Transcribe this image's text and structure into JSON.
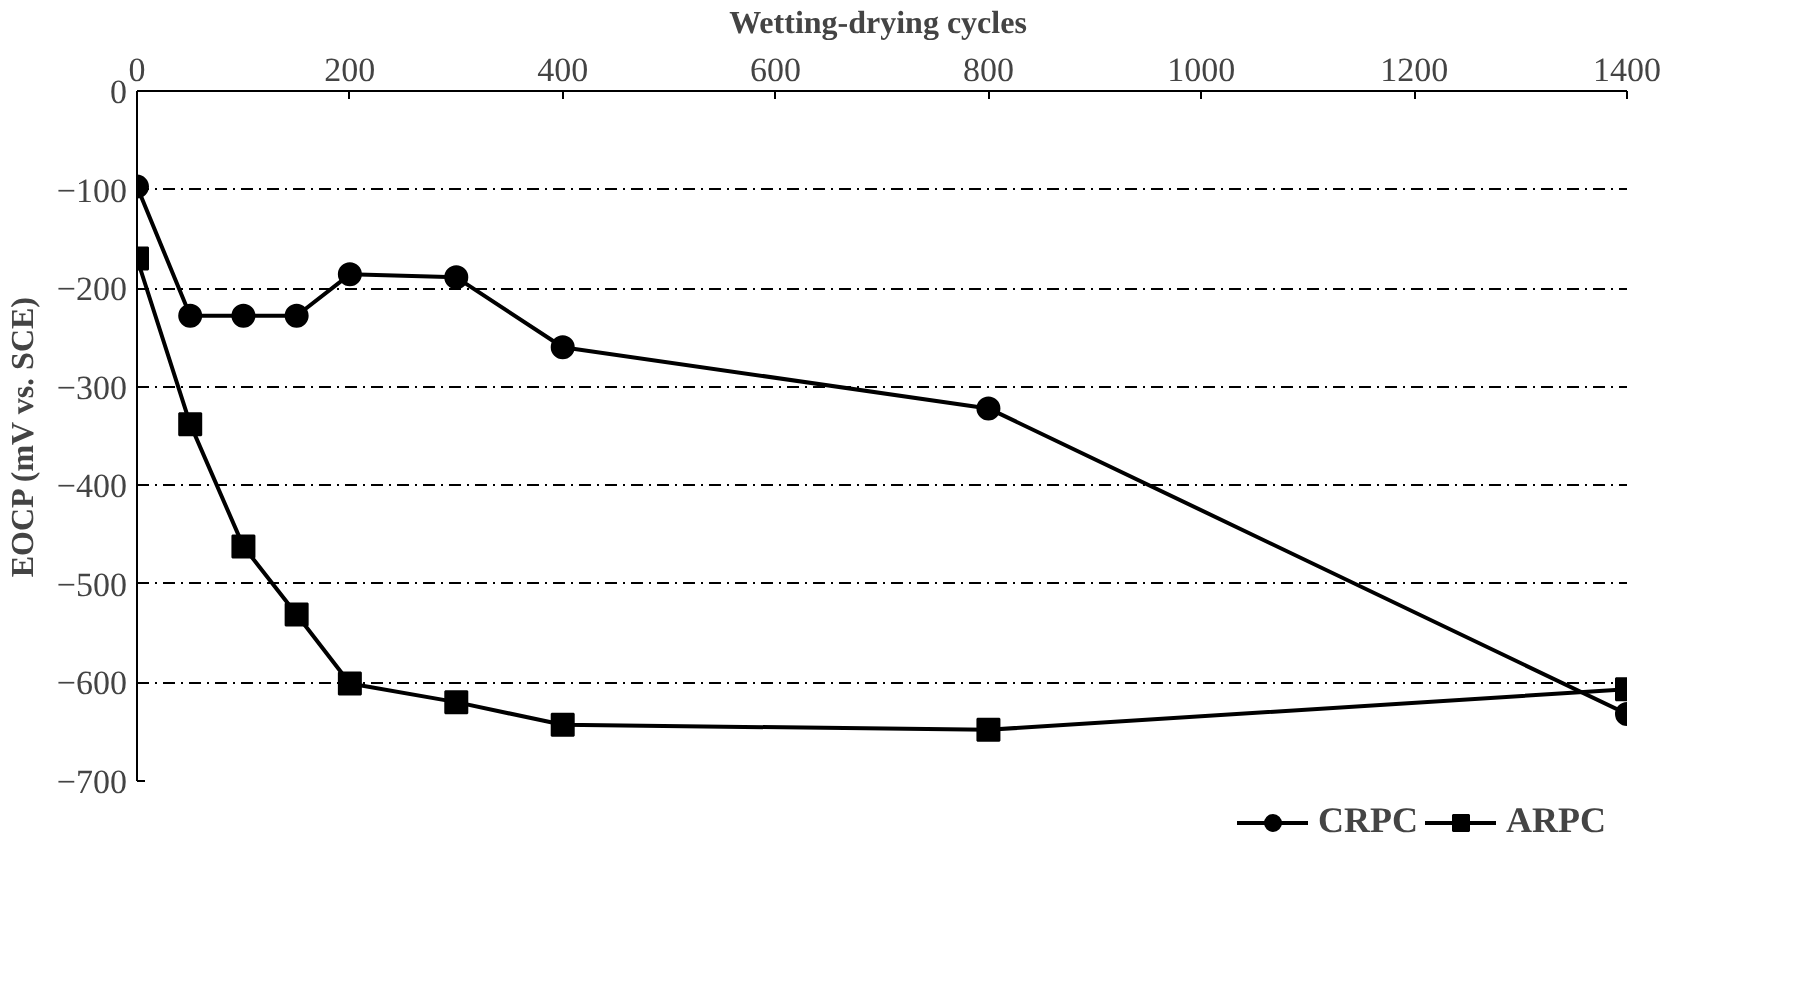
{
  "chart_data": {
    "type": "line",
    "xlabel": "Wetting-drying  cycles",
    "ylabel": "EOCP (mV vs. SCE)",
    "xlim": [
      0,
      1400
    ],
    "xticks": [
      0,
      200,
      400,
      600,
      800,
      1000,
      1200,
      1400
    ],
    "ylim": [
      -700,
      0
    ],
    "yticks": [
      -700,
      -600,
      -500,
      -400,
      -300,
      -200,
      -100,
      0
    ],
    "grid": "y",
    "legend": "bottom",
    "line_style": "solid",
    "series": [
      {
        "name": "CRPC",
        "color": "#000000",
        "marker": "circle",
        "x": [
          0,
          50,
          100,
          150,
          200,
          300,
          400,
          800,
          1400
        ],
        "values": [
          -97,
          -228,
          -228,
          -228,
          -186,
          -189,
          -260,
          -322,
          -632
        ]
      },
      {
        "name": "ARPC",
        "color": "#000000",
        "marker": "square",
        "x": [
          0,
          50,
          100,
          150,
          200,
          300,
          400,
          800,
          1400
        ],
        "values": [
          -170,
          -338,
          -462,
          -531,
          -601,
          -620,
          -643,
          -648,
          -607
        ]
      }
    ]
  }
}
